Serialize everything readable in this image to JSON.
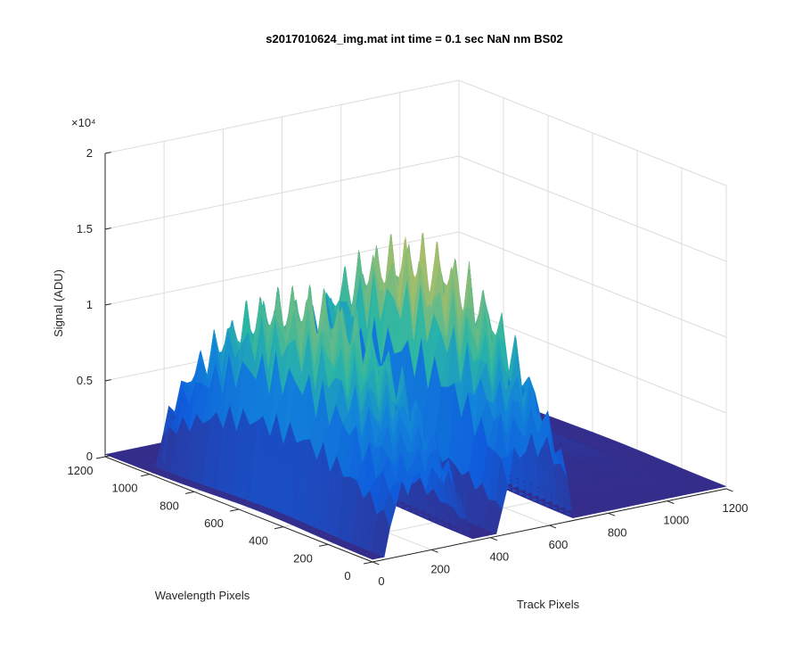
{
  "chart_data": {
    "type": "surface",
    "title": "s2017010624_img.mat int time = 0.1 sec  NaN nm BS02",
    "xlabel": "Track Pixels",
    "ylabel": "Wavelength Pixels",
    "zlabel": "Signal (ADU)",
    "z_exponent_label": "×10⁴",
    "xlim": [
      0,
      1200
    ],
    "ylim": [
      0,
      1200
    ],
    "zlim": [
      0,
      20000
    ],
    "x_ticks": [
      "0",
      "200",
      "400",
      "600",
      "800",
      "1000",
      "1200"
    ],
    "y_ticks": [
      "0",
      "200",
      "400",
      "600",
      "800",
      "1000",
      "1200"
    ],
    "z_ticks": [
      "0",
      "0.5",
      "1",
      "1.5",
      "2"
    ],
    "grid": true,
    "colormap": "parula",
    "peaks": [
      {
        "track_start": 40,
        "track_end": 330,
        "peak_signal": 14000,
        "wavelength_end": 1020
      },
      {
        "track_start": 430,
        "track_end": 680,
        "peak_signal": 16000,
        "wavelength_end": 1020
      }
    ],
    "colors": {
      "low": "#352a87",
      "mid": "#0f85d9",
      "midhigh": "#2ab6a5",
      "high": "#f9d12d"
    }
  }
}
